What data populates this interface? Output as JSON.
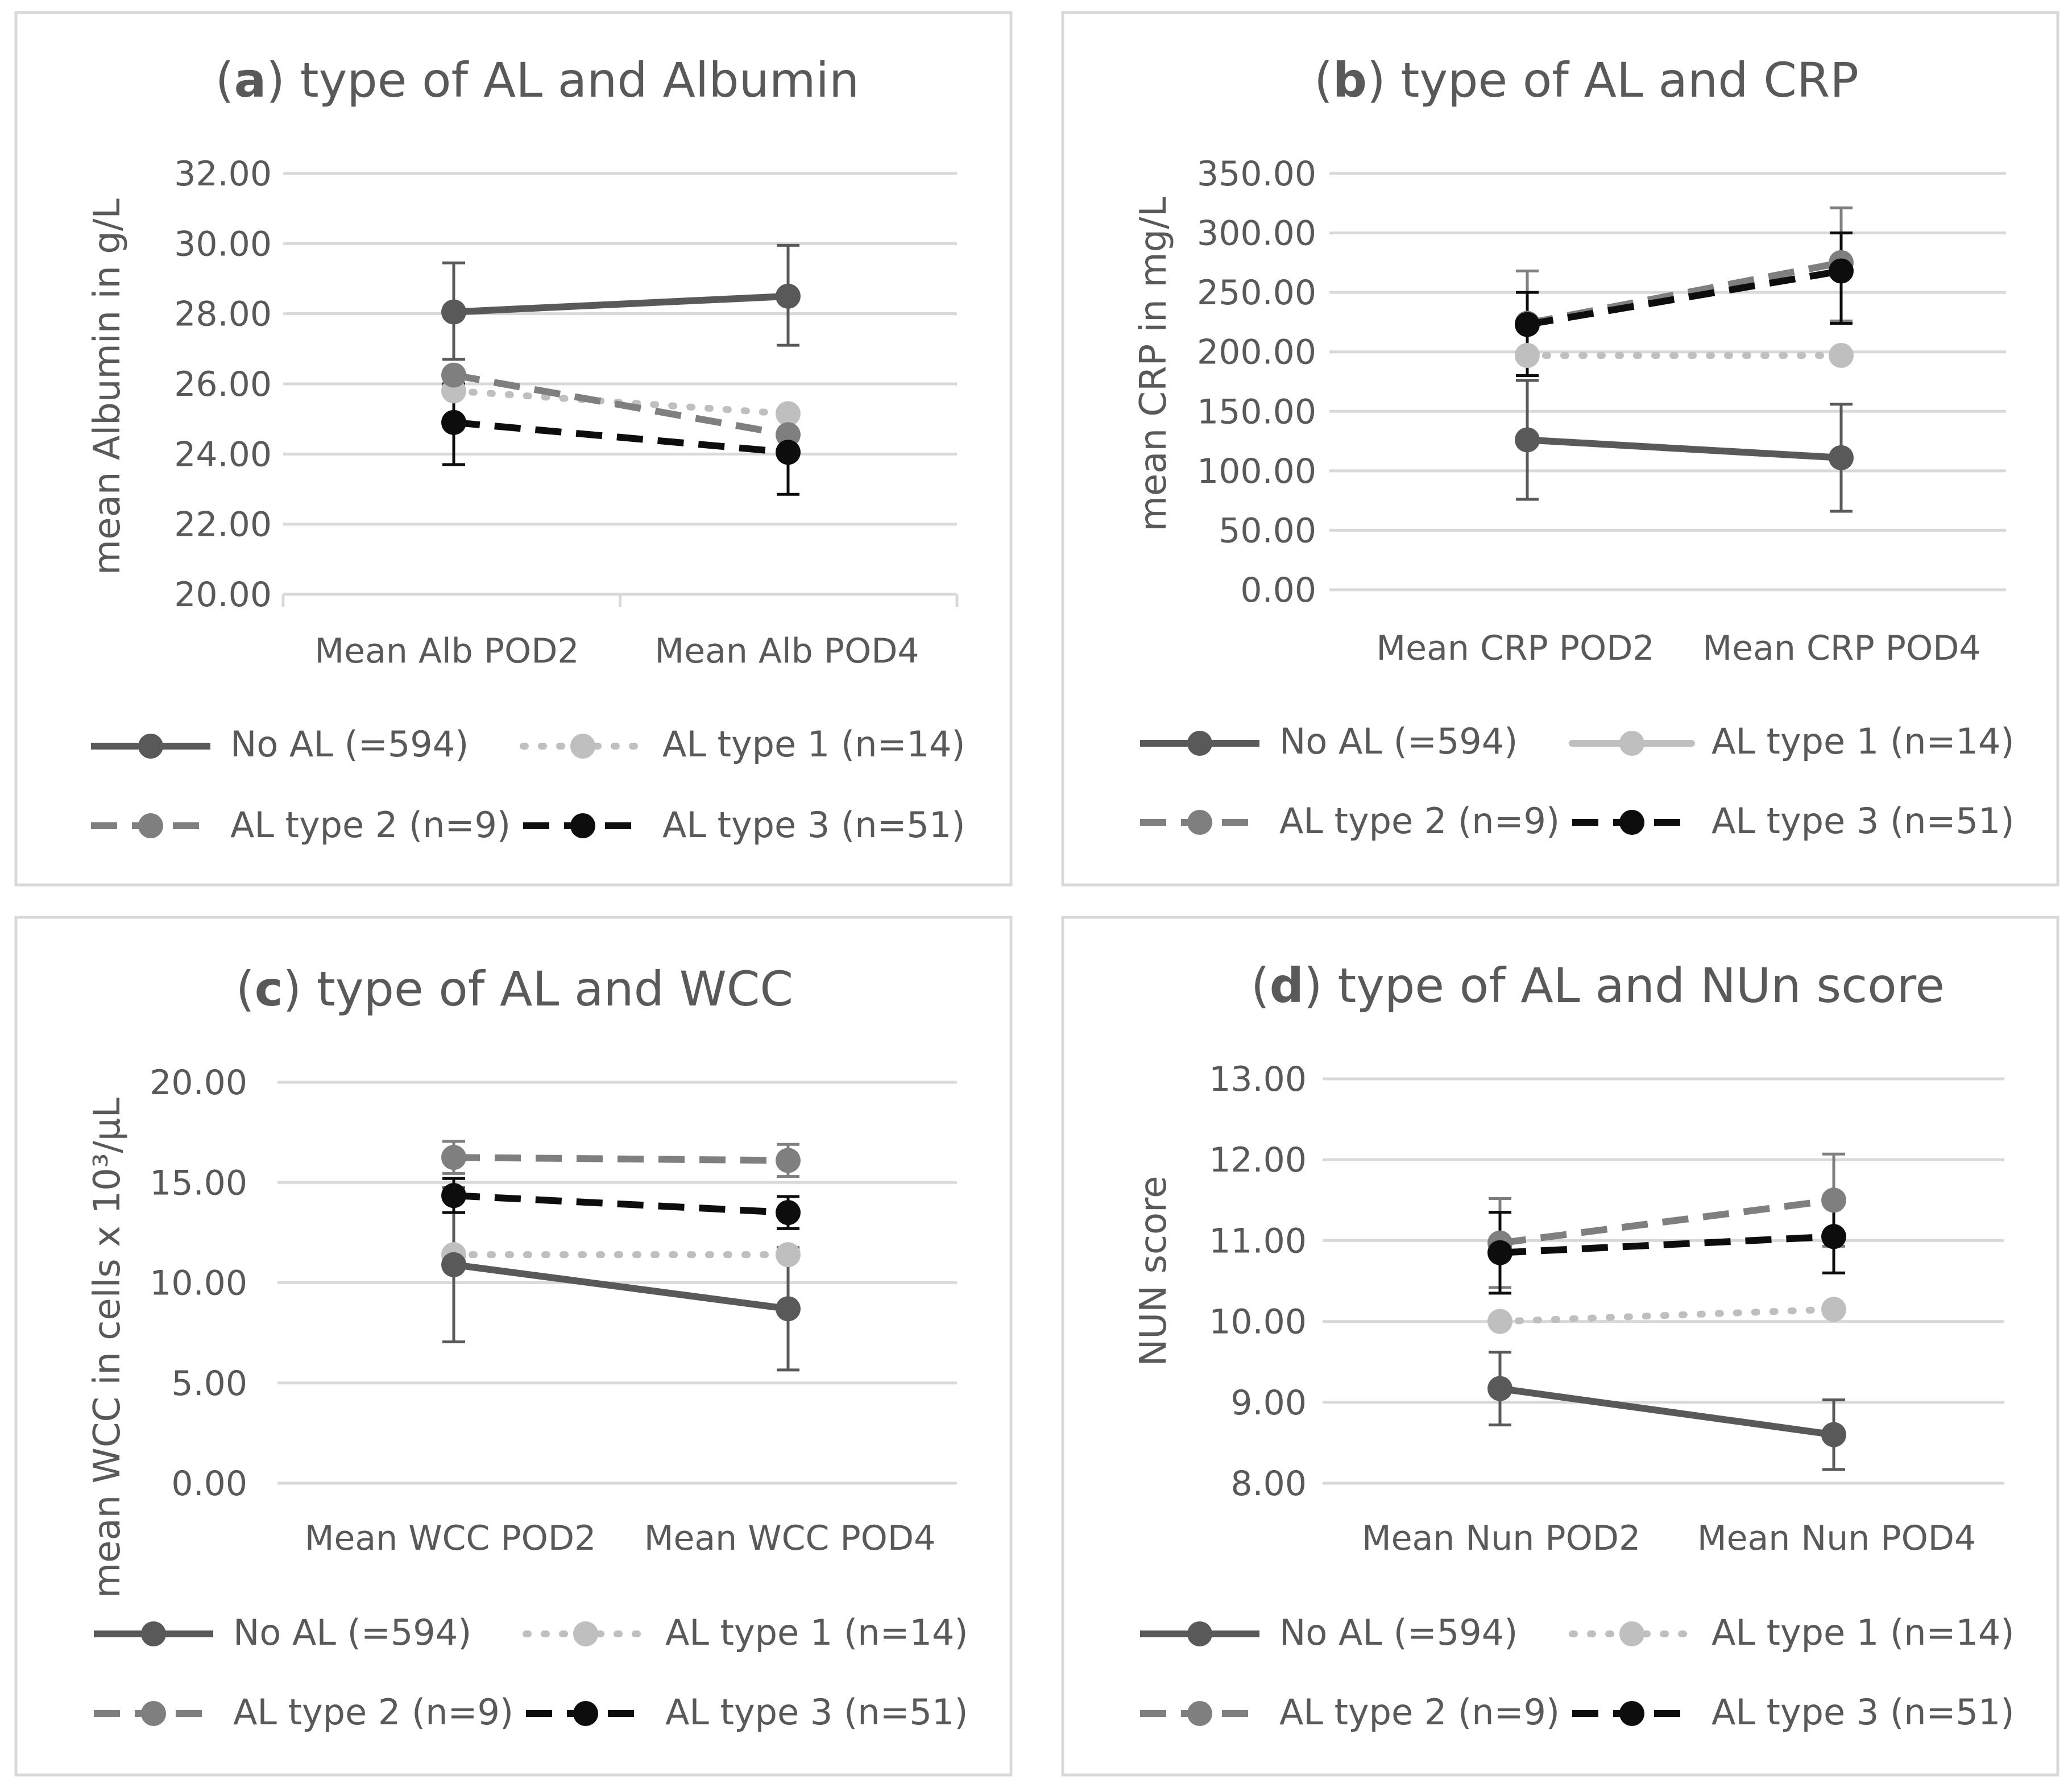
{
  "figure": {
    "panels": [
      {
        "id": "a",
        "title_letter": "a",
        "title_rest": "type of AL and Albumin",
        "ylabel": "mean Albumin in g/L",
        "yticks": [
          "20.00",
          "22.00",
          "24.00",
          "26.00",
          "28.00",
          "30.00",
          "32.00"
        ],
        "categories": [
          "Mean Alb POD2",
          "Mean Alb POD4"
        ],
        "legend": [
          {
            "label": "No AL (=594)",
            "series": 0
          },
          {
            "label": "AL type 1 (n=14)",
            "series": 1
          },
          {
            "label": "AL type 2 (n=9)",
            "series": 2
          },
          {
            "label": "AL type 3 (n=51)",
            "series": 3
          }
        ]
      },
      {
        "id": "b",
        "title_letter": "b",
        "title_rest": "type of AL and CRP",
        "ylabel": "mean CRP in mg/L",
        "yticks": [
          "0.00",
          "50.00",
          "100.00",
          "150.00",
          "200.00",
          "250.00",
          "300.00",
          "350.00"
        ],
        "categories": [
          "Mean CRP POD2",
          "Mean CRP POD4"
        ],
        "legend": [
          {
            "label": "No AL (=594)",
            "series": 0
          },
          {
            "label": "AL type 1 (n=14)",
            "series": 1
          },
          {
            "label": "AL type 2 (n=9)",
            "series": 2
          },
          {
            "label": "AL type 3 (n=51)",
            "series": 3
          }
        ]
      },
      {
        "id": "c",
        "title_letter": "c",
        "title_rest": "type of AL and WCC",
        "ylabel": "mean WCC in cells x 10³/µL",
        "yticks": [
          "0.00",
          "5.00",
          "10.00",
          "15.00",
          "20.00"
        ],
        "categories": [
          "Mean WCC POD2",
          "Mean WCC POD4"
        ],
        "legend": [
          {
            "label": "No AL (=594)",
            "series": 0
          },
          {
            "label": "AL type 1 (n=14)",
            "series": 1
          },
          {
            "label": "AL type 2 (n=9)",
            "series": 2
          },
          {
            "label": "AL type 3 (n=51)",
            "series": 3
          }
        ]
      },
      {
        "id": "d",
        "title_letter": "d",
        "title_rest": "type of AL and NUn score",
        "ylabel": "NUN score",
        "yticks": [
          "8.00",
          "9.00",
          "10.00",
          "11.00",
          "12.00",
          "13.00"
        ],
        "categories": [
          "Mean Nun POD2",
          "Mean Nun POD4"
        ],
        "legend": [
          {
            "label": "No AL (=594)",
            "series": 0
          },
          {
            "label": "AL type 1 (n=14)",
            "series": 1
          },
          {
            "label": "AL type 2 (n=9)",
            "series": 2
          },
          {
            "label": "AL type 3 (n=51)",
            "series": 3
          }
        ]
      }
    ]
  },
  "chart_data": [
    {
      "panel": "a",
      "type": "line",
      "title": "(a) type of AL and Albumin",
      "xlabel": "",
      "ylabel": "mean Albumin in g/L",
      "ylim": [
        20,
        32
      ],
      "categories": [
        "Mean Alb POD2",
        "Mean Alb POD4"
      ],
      "series": [
        {
          "name": "No AL (=594)",
          "values": [
            28.05,
            28.5
          ],
          "err_low": [
            26.7,
            27.1
          ],
          "err_high": [
            29.45,
            29.95
          ],
          "color": "#595959",
          "dash": "solid"
        },
        {
          "name": "AL type 1 (n=14)",
          "values": [
            25.8,
            25.15
          ],
          "color": "#bfbfbf",
          "dash": "dotted"
        },
        {
          "name": "AL type 2 (n=9)",
          "values": [
            26.25,
            24.55
          ],
          "color": "#7f7f7f",
          "dash": "dashed"
        },
        {
          "name": "AL type 3 (n=51)",
          "values": [
            24.9,
            24.05
          ],
          "err_low": [
            23.7,
            22.85
          ],
          "err_high": [
            26.0,
            25.2
          ],
          "color": "#0d0d0d",
          "dash": "dashed"
        }
      ]
    },
    {
      "panel": "b",
      "type": "line",
      "title": "(b) type of AL and CRP",
      "xlabel": "",
      "ylabel": "mean CRP in mg/L",
      "ylim": [
        0,
        350
      ],
      "categories": [
        "Mean CRP POD2",
        "Mean CRP POD4"
      ],
      "series": [
        {
          "name": "No AL (=594)",
          "values": [
            126,
            111
          ],
          "err_low": [
            76,
            66
          ],
          "err_high": [
            176,
            156
          ],
          "color": "#595959",
          "dash": "solid"
        },
        {
          "name": "AL type 1 (n=14)",
          "values": [
            197,
            197
          ],
          "color": "#bfbfbf",
          "dash": "dotted"
        },
        {
          "name": "AL type 2 (n=9)",
          "values": [
            224,
            275
          ],
          "err_low": [
            180,
            226
          ],
          "err_high": [
            268,
            321
          ],
          "color": "#7f7f7f",
          "dash": "dashed"
        },
        {
          "name": "AL type 3 (n=51)",
          "values": [
            223,
            268
          ],
          "err_low": [
            180,
            224
          ],
          "err_high": [
            250,
            300
          ],
          "color": "#0d0d0d",
          "dash": "dashed"
        }
      ]
    },
    {
      "panel": "c",
      "type": "line",
      "title": "(c) type of AL and WCC",
      "xlabel": "",
      "ylabel": "mean WCC in cells x 10³/µL",
      "ylim": [
        0,
        20
      ],
      "categories": [
        "Mean WCC POD2",
        "Mean WCC POD4"
      ],
      "series": [
        {
          "name": "No AL (=594)",
          "values": [
            10.9,
            8.7
          ],
          "err_low": [
            7.05,
            5.65
          ],
          "err_high": [
            14.75,
            11.75
          ],
          "color": "#595959",
          "dash": "solid"
        },
        {
          "name": "AL type 1 (n=14)",
          "values": [
            11.4,
            11.4
          ],
          "color": "#bfbfbf",
          "dash": "dotted"
        },
        {
          "name": "AL type 2 (n=9)",
          "values": [
            16.25,
            16.1
          ],
          "err_low": [
            15.45,
            15.3
          ],
          "err_high": [
            17.05,
            16.9
          ],
          "color": "#7f7f7f",
          "dash": "dashed"
        },
        {
          "name": "AL type 3 (n=51)",
          "values": [
            14.35,
            13.5
          ],
          "err_low": [
            13.5,
            12.7
          ],
          "err_high": [
            15.2,
            14.3
          ],
          "color": "#0d0d0d",
          "dash": "dashed"
        }
      ]
    },
    {
      "panel": "d",
      "type": "line",
      "title": "(d) type of AL and NUn score",
      "xlabel": "",
      "ylabel": "NUN score",
      "ylim": [
        8,
        13
      ],
      "categories": [
        "Mean Nun POD2",
        "Mean Nun POD4"
      ],
      "series": [
        {
          "name": "No AL (=594)",
          "values": [
            9.17,
            8.6
          ],
          "err_low": [
            8.72,
            8.17
          ],
          "err_high": [
            9.62,
            9.03
          ],
          "color": "#595959",
          "dash": "solid"
        },
        {
          "name": "AL type 1 (n=14)",
          "values": [
            10.0,
            10.15
          ],
          "color": "#bfbfbf",
          "dash": "dotted"
        },
        {
          "name": "AL type 2 (n=9)",
          "values": [
            10.97,
            11.5
          ],
          "err_low": [
            10.42,
            10.93
          ],
          "err_high": [
            11.52,
            12.07
          ],
          "color": "#7f7f7f",
          "dash": "dashed"
        },
        {
          "name": "AL type 3 (n=51)",
          "values": [
            10.85,
            11.05
          ],
          "err_low": [
            10.35,
            10.6
          ],
          "err_high": [
            11.35,
            11.5
          ],
          "color": "#0d0d0d",
          "dash": "dashed"
        }
      ]
    }
  ]
}
